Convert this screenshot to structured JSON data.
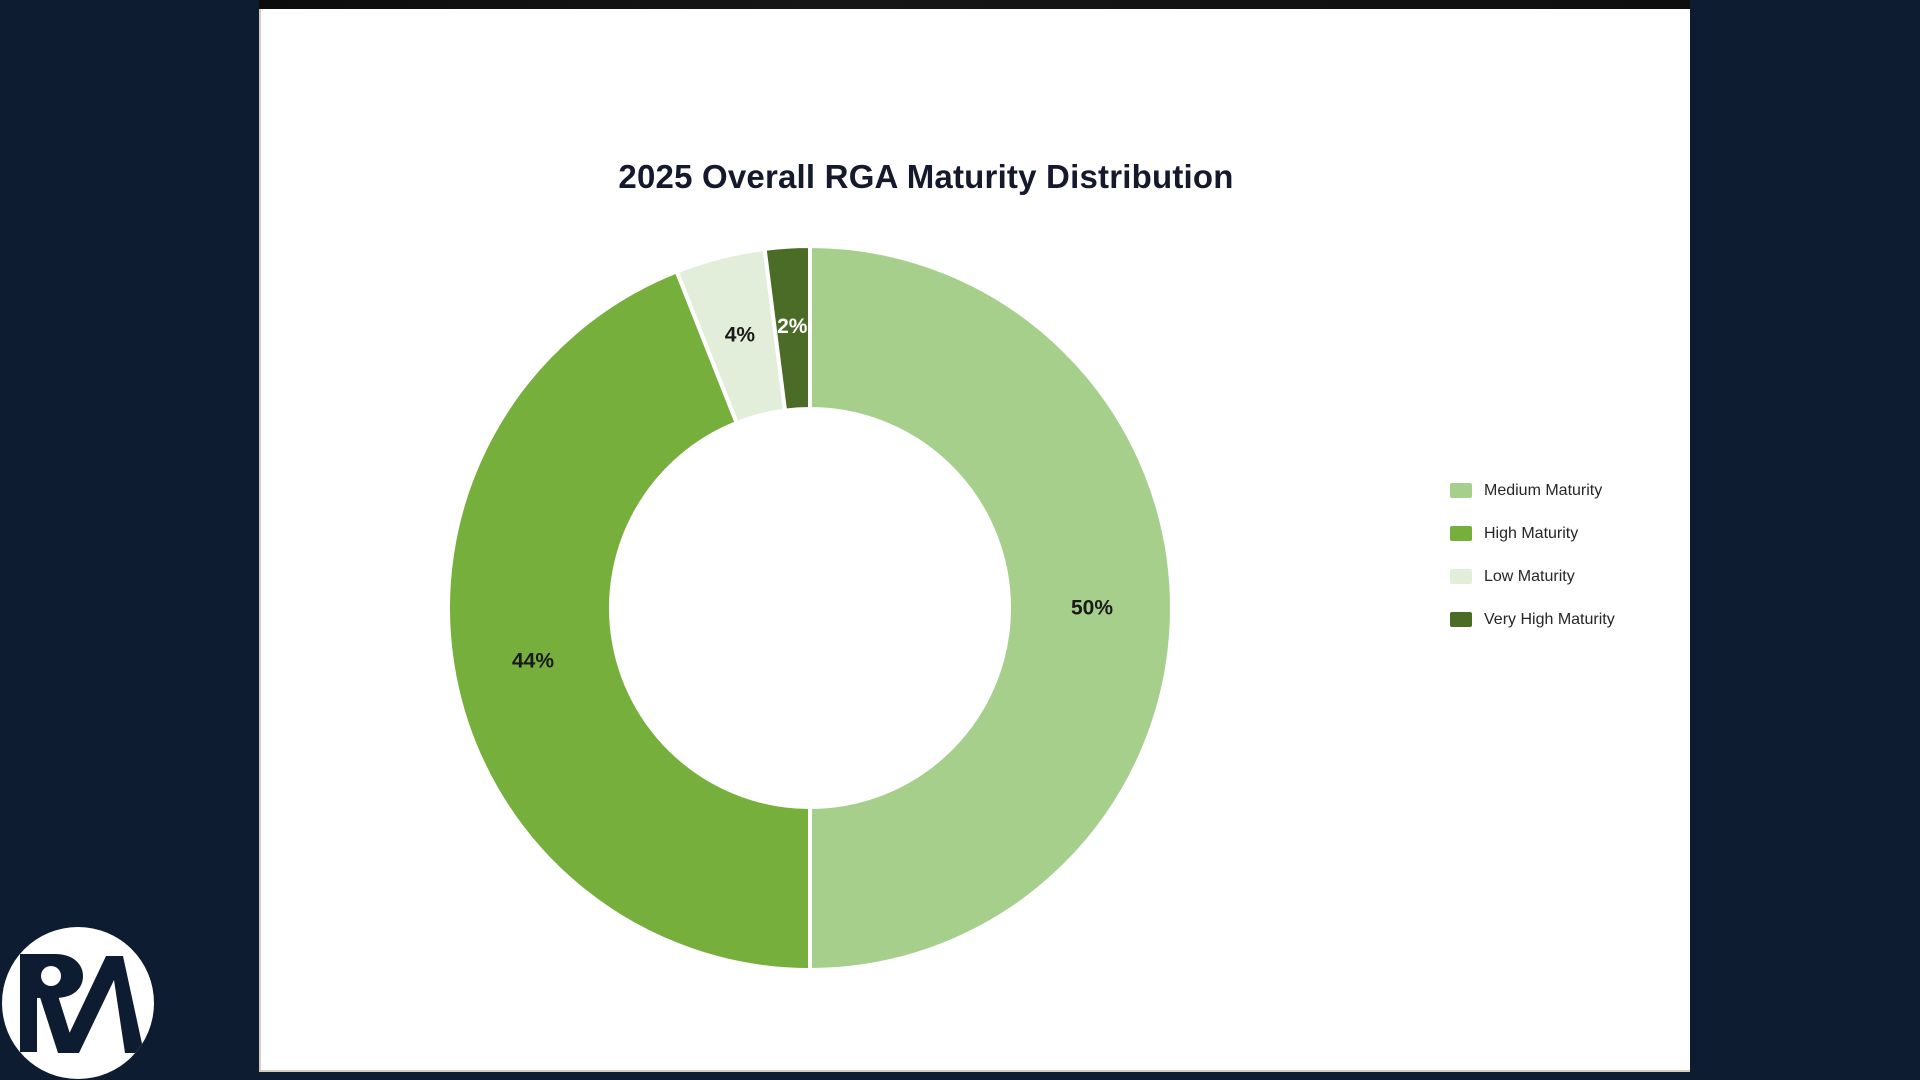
{
  "page": {
    "background_color": "#0d1c31",
    "panel_color": "#ffffff",
    "top_strip_color": "#101010",
    "panel_edge_color": "#d5cdc0"
  },
  "logo": {
    "text": "RA",
    "circle_color": "#ffffff",
    "letter_color": "#0d1c31"
  },
  "chart_data": {
    "type": "pie",
    "variant": "donut",
    "title": "2025 Overall RGA Maturity Distribution",
    "title_color": "#141a2b",
    "legend_position": "right",
    "direction": "clockwise",
    "start_angle_deg": 0,
    "cutout_ratio": 0.55,
    "separator_color": "#ffffff",
    "total": 100,
    "segments": [
      {
        "label": "Medium Maturity",
        "value": 50,
        "data_label": "50%",
        "color": "#a6cf8c",
        "label_color": "#1a1a1a"
      },
      {
        "label": "High Maturity",
        "value": 44,
        "data_label": "44%",
        "color": "#76af3b",
        "label_color": "#1a1a1a"
      },
      {
        "label": "Low Maturity",
        "value": 4,
        "data_label": "4%",
        "color": "#e2eeda",
        "label_color": "#1a1a1a"
      },
      {
        "label": "Very High Maturity",
        "value": 2,
        "data_label": "2%",
        "color": "#4a6c26",
        "label_color": "#ffffff"
      }
    ]
  }
}
